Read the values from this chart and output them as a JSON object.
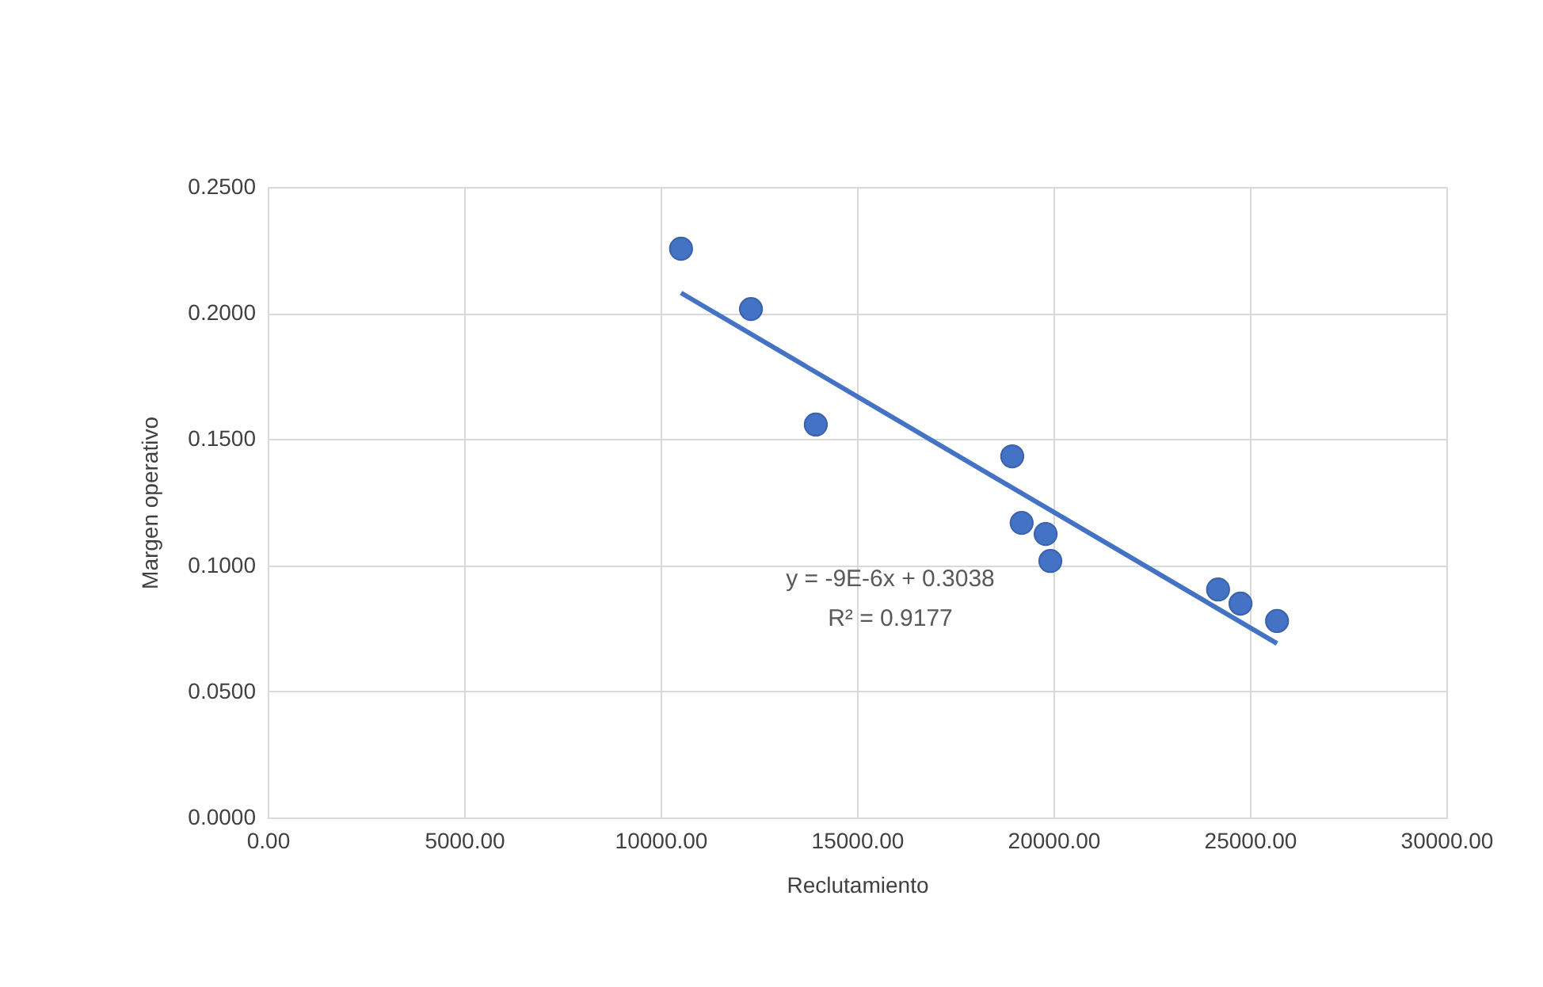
{
  "chart_data": {
    "type": "scatter",
    "xlabel": "Reclutamiento",
    "ylabel": "Margen operativo",
    "xlim": [
      0,
      30000
    ],
    "xticks": [
      {
        "value": 0,
        "label": "0.00"
      },
      {
        "value": 5000,
        "label": "5000.00"
      },
      {
        "value": 10000,
        "label": "10000.00"
      },
      {
        "value": 15000,
        "label": "15000.00"
      },
      {
        "value": 20000,
        "label": "20000.00"
      },
      {
        "value": 25000,
        "label": "25000.00"
      },
      {
        "value": 30000,
        "label": "30000.00"
      }
    ],
    "ylim": [
      0,
      0.25
    ],
    "yticks": [
      {
        "value": 0,
        "label": "0.0000"
      },
      {
        "value": 0.05,
        "label": "0.0500"
      },
      {
        "value": 0.1,
        "label": "0.1000"
      },
      {
        "value": 0.15,
        "label": "0.1500"
      },
      {
        "value": 0.2,
        "label": "0.2000"
      },
      {
        "value": 0.25,
        "label": "0.2500"
      }
    ],
    "grid": true,
    "series": [
      {
        "marker": "circle",
        "color": "#4472c4",
        "x": [
          10520,
          12300,
          13950,
          18950,
          19190,
          19800,
          19920,
          24190,
          24760,
          25690
        ],
        "values": [
          0.2255,
          0.2016,
          0.1558,
          0.1432,
          0.1168,
          0.1124,
          0.1017,
          0.0904,
          0.0848,
          0.0779
        ]
      },
      {
        "type": "line",
        "marker": "none",
        "color": "#4472c4",
        "line_style": "solid",
        "x": [
          10520,
          25690
        ],
        "values": [
          0.208,
          0.069
        ]
      }
    ],
    "annotations": [
      "y = -9E-6x + 0.3038",
      "R² = 0.9177"
    ]
  }
}
